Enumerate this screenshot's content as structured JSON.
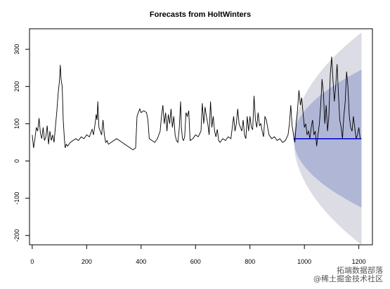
{
  "watermark": {
    "line1": "拓端数据部落",
    "line2": "@稀土掘金技术社区"
  },
  "chart_data": {
    "type": "line",
    "title": "Forecasts from HoltWinters",
    "xlabel": "",
    "ylabel": "",
    "xlim": [
      -10,
      1250
    ],
    "ylim": [
      -225,
      355
    ],
    "x_ticks": [
      0,
      200,
      400,
      600,
      800,
      1000,
      1200
    ],
    "y_ticks": [
      -200,
      -100,
      0,
      100,
      200,
      300
    ],
    "grid": false,
    "legend": "none",
    "colors": {
      "observed": "#000000",
      "forecast": "#0000cc",
      "band95": "#dcdce4",
      "band80": "#b0b6d6"
    },
    "series": [
      {
        "role": "observed",
        "points": [
          [
            0,
            70
          ],
          [
            5,
            35
          ],
          [
            10,
            60
          ],
          [
            15,
            90
          ],
          [
            20,
            80
          ],
          [
            25,
            115
          ],
          [
            30,
            75
          ],
          [
            35,
            60
          ],
          [
            40,
            90
          ],
          [
            45,
            55
          ],
          [
            50,
            65
          ],
          [
            55,
            95
          ],
          [
            60,
            45
          ],
          [
            65,
            80
          ],
          [
            70,
            55
          ],
          [
            75,
            70
          ],
          [
            80,
            50
          ],
          [
            85,
            90
          ],
          [
            90,
            130
          ],
          [
            95,
            180
          ],
          [
            100,
            215
          ],
          [
            103,
            258
          ],
          [
            106,
            220
          ],
          [
            110,
            200
          ],
          [
            114,
            110
          ],
          [
            118,
            60
          ],
          [
            121,
            35
          ],
          [
            125,
            45
          ],
          [
            130,
            40
          ],
          [
            140,
            50
          ],
          [
            150,
            55
          ],
          [
            160,
            60
          ],
          [
            170,
            55
          ],
          [
            180,
            65
          ],
          [
            190,
            60
          ],
          [
            200,
            70
          ],
          [
            210,
            65
          ],
          [
            220,
            85
          ],
          [
            225,
            70
          ],
          [
            230,
            95
          ],
          [
            235,
            125
          ],
          [
            238,
            110
          ],
          [
            241,
            160
          ],
          [
            245,
            90
          ],
          [
            250,
            80
          ],
          [
            255,
            70
          ],
          [
            260,
            110
          ],
          [
            265,
            70
          ],
          [
            270,
            50
          ],
          [
            275,
            55
          ],
          [
            280,
            45
          ],
          [
            290,
            50
          ],
          [
            300,
            55
          ],
          [
            310,
            60
          ],
          [
            320,
            55
          ],
          [
            330,
            50
          ],
          [
            340,
            45
          ],
          [
            350,
            40
          ],
          [
            360,
            35
          ],
          [
            370,
            30
          ],
          [
            380,
            35
          ],
          [
            385,
            120
          ],
          [
            390,
            130
          ],
          [
            395,
            140
          ],
          [
            400,
            130
          ],
          [
            410,
            135
          ],
          [
            420,
            130
          ],
          [
            425,
            110
          ],
          [
            430,
            60
          ],
          [
            440,
            55
          ],
          [
            450,
            50
          ],
          [
            460,
            60
          ],
          [
            470,
            80
          ],
          [
            475,
            120
          ],
          [
            480,
            150
          ],
          [
            485,
            100
          ],
          [
            490,
            130
          ],
          [
            495,
            80
          ],
          [
            500,
            125
          ],
          [
            505,
            100
          ],
          [
            510,
            140
          ],
          [
            515,
            90
          ],
          [
            520,
            120
          ],
          [
            525,
            70
          ],
          [
            530,
            55
          ],
          [
            535,
            50
          ],
          [
            540,
            85
          ],
          [
            545,
            160
          ],
          [
            548,
            90
          ],
          [
            552,
            60
          ],
          [
            556,
            55
          ],
          [
            560,
            65
          ],
          [
            565,
            130
          ],
          [
            570,
            120
          ],
          [
            575,
            135
          ],
          [
            580,
            55
          ],
          [
            590,
            60
          ],
          [
            600,
            70
          ],
          [
            610,
            65
          ],
          [
            620,
            80
          ],
          [
            625,
            155
          ],
          [
            630,
            100
          ],
          [
            635,
            145
          ],
          [
            640,
            120
          ],
          [
            645,
            100
          ],
          [
            650,
            70
          ],
          [
            655,
            160
          ],
          [
            660,
            90
          ],
          [
            665,
            120
          ],
          [
            670,
            80
          ],
          [
            675,
            65
          ],
          [
            680,
            85
          ],
          [
            685,
            55
          ],
          [
            690,
            50
          ],
          [
            700,
            60
          ],
          [
            710,
            55
          ],
          [
            720,
            65
          ],
          [
            730,
            60
          ],
          [
            740,
            120
          ],
          [
            745,
            80
          ],
          [
            750,
            100
          ],
          [
            755,
            140
          ],
          [
            760,
            100
          ],
          [
            765,
            90
          ],
          [
            770,
            80
          ],
          [
            775,
            110
          ],
          [
            780,
            70
          ],
          [
            785,
            60
          ],
          [
            790,
            120
          ],
          [
            795,
            80
          ],
          [
            800,
            120
          ],
          [
            805,
            90
          ],
          [
            810,
            85
          ],
          [
            815,
            175
          ],
          [
            820,
            110
          ],
          [
            825,
            90
          ],
          [
            830,
            130
          ],
          [
            835,
            95
          ],
          [
            840,
            100
          ],
          [
            845,
            80
          ],
          [
            850,
            65
          ],
          [
            855,
            120
          ],
          [
            860,
            110
          ],
          [
            865,
            90
          ],
          [
            870,
            70
          ],
          [
            880,
            60
          ],
          [
            890,
            65
          ],
          [
            900,
            55
          ],
          [
            910,
            60
          ],
          [
            920,
            50
          ],
          [
            930,
            55
          ],
          [
            940,
            70
          ],
          [
            945,
            100
          ],
          [
            950,
            150
          ],
          [
            955,
            95
          ],
          [
            960,
            70
          ],
          [
            965,
            50
          ],
          [
            970,
            100
          ],
          [
            975,
            140
          ],
          [
            980,
            190
          ],
          [
            985,
            150
          ],
          [
            990,
            170
          ],
          [
            995,
            130
          ],
          [
            1000,
            90
          ],
          [
            1005,
            100
          ],
          [
            1010,
            70
          ],
          [
            1015,
            80
          ],
          [
            1020,
            60
          ],
          [
            1025,
            90
          ],
          [
            1030,
            110
          ],
          [
            1035,
            70
          ],
          [
            1040,
            80
          ],
          [
            1045,
            40
          ],
          [
            1050,
            70
          ],
          [
            1055,
            100
          ],
          [
            1060,
            150
          ],
          [
            1065,
            220
          ],
          [
            1070,
            180
          ],
          [
            1075,
            100
          ],
          [
            1080,
            150
          ],
          [
            1085,
            80
          ],
          [
            1090,
            120
          ],
          [
            1095,
            230
          ],
          [
            1100,
            280
          ],
          [
            1105,
            220
          ],
          [
            1110,
            160
          ],
          [
            1115,
            200
          ],
          [
            1120,
            260
          ],
          [
            1125,
            180
          ],
          [
            1130,
            110
          ],
          [
            1135,
            90
          ],
          [
            1140,
            60
          ],
          [
            1145,
            120
          ],
          [
            1150,
            160
          ],
          [
            1155,
            240
          ],
          [
            1160,
            200
          ],
          [
            1165,
            120
          ],
          [
            1170,
            90
          ],
          [
            1175,
            80
          ],
          [
            1180,
            120
          ],
          [
            1185,
            90
          ],
          [
            1190,
            60
          ],
          [
            1195,
            70
          ],
          [
            1200,
            90
          ],
          [
            1205,
            60
          ]
        ]
      },
      {
        "role": "forecast",
        "points": [
          [
            960,
            60
          ],
          [
            1210,
            60
          ]
        ]
      }
    ],
    "bands": [
      {
        "level": "95%",
        "start": 960,
        "end": 1210,
        "center": 60,
        "halfwidth_end": 285
      },
      {
        "level": "80%",
        "start": 960,
        "end": 1210,
        "center": 60,
        "halfwidth_end": 185
      }
    ]
  }
}
